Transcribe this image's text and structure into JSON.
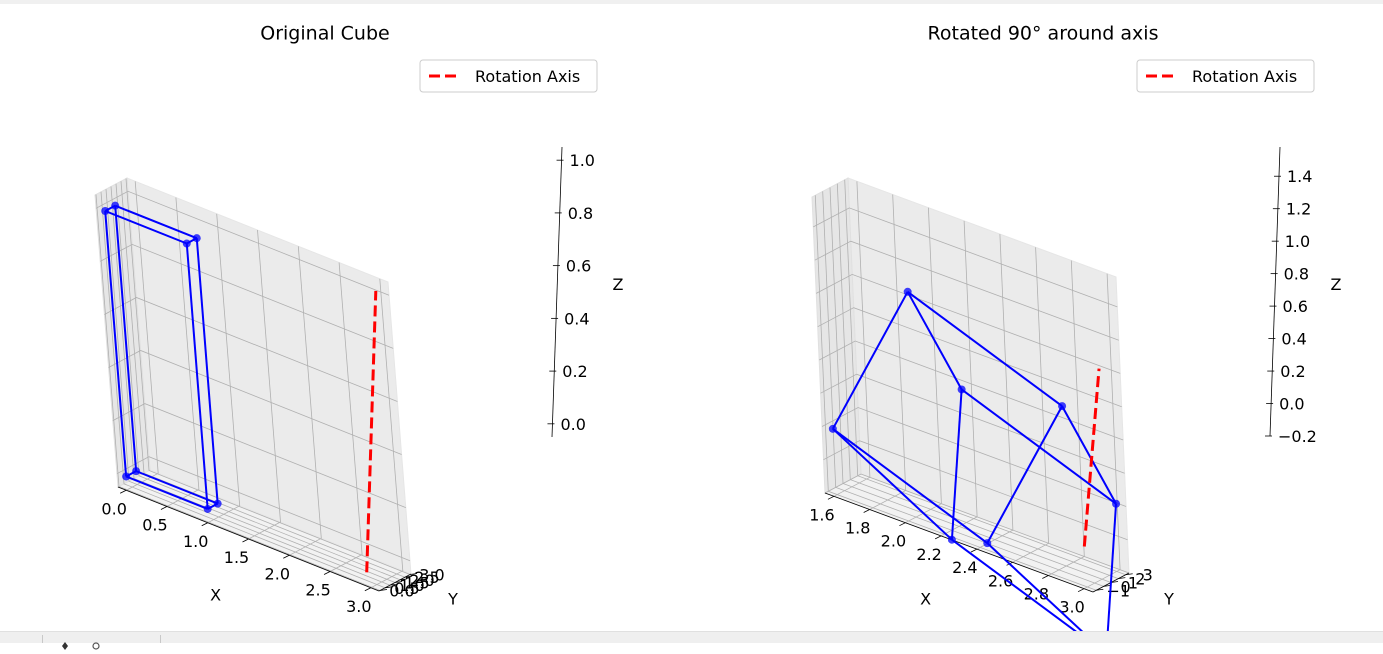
{
  "window": {
    "toolbar_icons": [
      "pan-icon",
      "zoom-icon"
    ]
  },
  "chart_data": [
    {
      "type": "3d-wireframe",
      "title": "Original Cube",
      "xlabel": "X",
      "ylabel": "Y",
      "zlabel": "Z",
      "xlim": [
        -0.1,
        3.1
      ],
      "ylim": [
        -0.1,
        3.1
      ],
      "zlim": [
        -0.05,
        1.05
      ],
      "xticks": [
        "0.0",
        "0.5",
        "1.0",
        "1.5",
        "2.0",
        "2.5",
        "3.0"
      ],
      "yticks": [
        "0.0",
        "0.5",
        "1.0",
        "1.5",
        "2.0",
        "2.5",
        "3.0"
      ],
      "zticks": [
        "0.0",
        "0.2",
        "0.4",
        "0.6",
        "0.8",
        "1.0"
      ],
      "grid": true,
      "legend": {
        "placement": "top-right",
        "entries": [
          {
            "label": "Rotation Axis",
            "color": "#ff0000",
            "style": "dashed"
          }
        ]
      },
      "series": [
        {
          "name": "cube",
          "color": "#0000ff",
          "vertices": [
            [
              0,
              0,
              0
            ],
            [
              1,
              0,
              0
            ],
            [
              1,
              1,
              0
            ],
            [
              0,
              1,
              0
            ],
            [
              0,
              0,
              1
            ],
            [
              1,
              0,
              1
            ],
            [
              1,
              1,
              1
            ],
            [
              0,
              1,
              1
            ]
          ],
          "edges": [
            [
              0,
              1
            ],
            [
              1,
              2
            ],
            [
              2,
              3
            ],
            [
              3,
              0
            ],
            [
              4,
              5
            ],
            [
              5,
              6
            ],
            [
              6,
              7
            ],
            [
              7,
              4
            ],
            [
              0,
              4
            ],
            [
              1,
              5
            ],
            [
              2,
              6
            ],
            [
              3,
              7
            ]
          ]
        },
        {
          "name": "Rotation Axis",
          "color": "#ff0000",
          "style": "dashed",
          "points": [
            [
              2.95,
              0.0,
              0.0
            ],
            [
              2.95,
              3.0,
              1.0
            ]
          ]
        }
      ]
    },
    {
      "type": "3d-wireframe",
      "title": "Rotated 90° around axis",
      "xlabel": "X",
      "ylabel": "Y",
      "zlabel": "Z",
      "xlim": [
        1.55,
        3.05
      ],
      "ylim": [
        -1.45,
        3.45
      ],
      "zlim": [
        -0.2,
        1.58
      ],
      "xticks": [
        "1.6",
        "1.8",
        "2.0",
        "2.2",
        "2.4",
        "2.6",
        "2.8",
        "3.0"
      ],
      "yticks": [
        "−1",
        "0",
        "1",
        "2",
        "3"
      ],
      "zticks": [
        "−0.2",
        "0.0",
        "0.2",
        "0.4",
        "0.6",
        "0.8",
        "1.0",
        "1.2",
        "1.4"
      ],
      "grid": true,
      "legend": {
        "placement": "top-right",
        "entries": [
          {
            "label": "Rotation Axis",
            "color": "#ff0000",
            "style": "dashed"
          }
        ]
      },
      "series": [
        {
          "name": "rotated cube",
          "color": "#0000ff",
          "vertices": [
            [
              1.6,
              -1.2,
              0.2
            ],
            [
              2.45,
              -1.2,
              -0.15
            ],
            [
              2.85,
              0.2,
              0.8
            ],
            [
              2.0,
              0.2,
              1.15
            ],
            [
              2.1,
              2.3,
              -0.35
            ],
            [
              2.95,
              2.3,
              -0.7
            ],
            [
              3.0,
              3.3,
              0.2
            ],
            [
              2.15,
              3.3,
              0.55
            ]
          ],
          "edges": [
            [
              0,
              1
            ],
            [
              1,
              2
            ],
            [
              2,
              3
            ],
            [
              3,
              0
            ],
            [
              4,
              5
            ],
            [
              5,
              6
            ],
            [
              6,
              7
            ],
            [
              7,
              4
            ],
            [
              0,
              4
            ],
            [
              1,
              5
            ],
            [
              2,
              6
            ],
            [
              3,
              7
            ]
          ]
        },
        {
          "name": "Rotation Axis",
          "color": "#ff0000",
          "style": "dashed",
          "points": [
            [
              2.95,
              0.0,
              0.0
            ],
            [
              2.95,
              3.0,
              1.0
            ]
          ]
        }
      ]
    }
  ]
}
